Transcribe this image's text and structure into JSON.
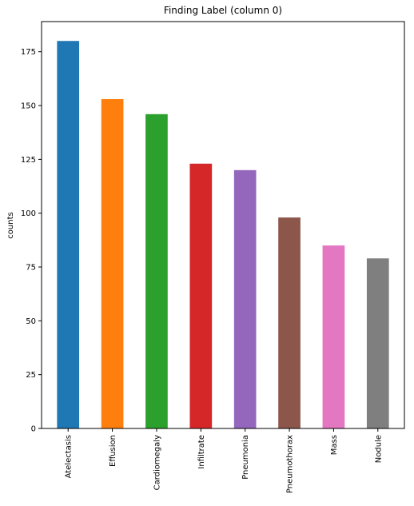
{
  "chart_data": {
    "type": "bar",
    "title": "Finding Label (column 0)",
    "xlabel": "",
    "ylabel": "counts",
    "categories": [
      "Atelectasis",
      "Effusion",
      "Cardiomegaly",
      "Infiltrate",
      "Pneumonia",
      "Pneumothorax",
      "Mass",
      "Nodule"
    ],
    "values": [
      180,
      153,
      146,
      123,
      120,
      98,
      85,
      79
    ],
    "colors": [
      "#1f77b4",
      "#ff7f0e",
      "#2ca02c",
      "#d62728",
      "#9467bd",
      "#8c564b",
      "#e377c2",
      "#7f7f7f"
    ],
    "yticks": [
      0,
      25,
      50,
      75,
      100,
      125,
      150,
      175
    ],
    "ylim": [
      0,
      189
    ],
    "grid": false,
    "legend": "none"
  }
}
